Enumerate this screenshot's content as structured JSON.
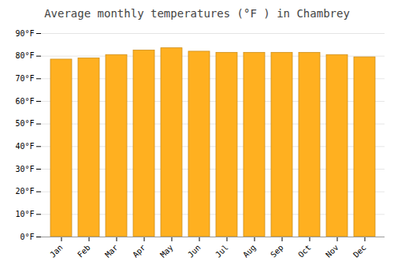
{
  "chart_data": {
    "type": "bar",
    "title": "Average monthly temperatures (°F ) in Chambrey",
    "categories": [
      "Jan",
      "Feb",
      "Mar",
      "Apr",
      "May",
      "Jun",
      "Jul",
      "Aug",
      "Sep",
      "Oct",
      "Nov",
      "Dec"
    ],
    "values": [
      78.5,
      79.0,
      80.5,
      82.5,
      83.5,
      82.0,
      81.5,
      81.5,
      81.5,
      81.5,
      80.5,
      79.5
    ],
    "color": "#FFB020",
    "ylim": [
      0,
      90
    ],
    "yticks": [
      {
        "value": 0,
        "label": "0°F"
      },
      {
        "value": 10,
        "label": "10°F"
      },
      {
        "value": 20,
        "label": "20°F"
      },
      {
        "value": 30,
        "label": "30°F"
      },
      {
        "value": 40,
        "label": "40°F"
      },
      {
        "value": 50,
        "label": "50°F"
      },
      {
        "value": 60,
        "label": "60°F"
      },
      {
        "value": 70,
        "label": "70°F"
      },
      {
        "value": 80,
        "label": "80°F"
      },
      {
        "value": 90,
        "label": "90°F"
      }
    ],
    "grid": true
  }
}
